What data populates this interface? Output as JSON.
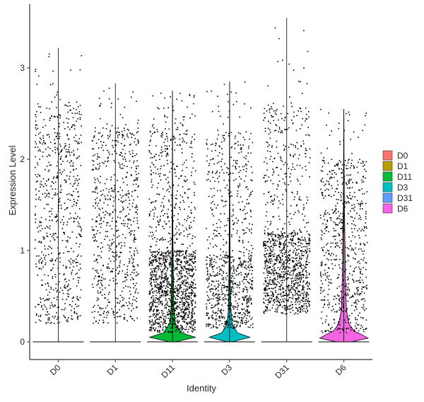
{
  "chart_data": {
    "type": "violin",
    "title": "",
    "xlabel": "Identity",
    "ylabel": "Expression Level",
    "ylim": [
      -0.18,
      3.6
    ],
    "yticks": [
      0,
      1,
      2,
      3
    ],
    "categories": [
      "D0",
      "D1",
      "D11",
      "D3",
      "D31",
      "D6"
    ],
    "legend": {
      "position": "right",
      "entries": [
        "D0",
        "D1",
        "D11",
        "D3",
        "D31",
        "D6"
      ]
    },
    "colors": [
      "#F8766D",
      "#B79F00",
      "#00BA38",
      "#00BFC4",
      "#619CFF",
      "#F564E3"
    ],
    "grid": false,
    "series": [
      {
        "name": "D0",
        "max": 3.22,
        "zero_density": 0.0,
        "body": []
      },
      {
        "name": "D1",
        "max": 2.83,
        "zero_density": 0.0,
        "body": []
      },
      {
        "name": "D11",
        "max": 2.75,
        "zero_density": 0.12,
        "body": [
          [
            0.05,
            0.9
          ],
          [
            0.1,
            0.35
          ],
          [
            0.2,
            0.12
          ],
          [
            0.35,
            0.06
          ],
          [
            0.55,
            0.04
          ],
          [
            0.8,
            0.03
          ],
          [
            1.1,
            0.02
          ],
          [
            1.5,
            0.01
          ],
          [
            2.75,
            0.0
          ]
        ]
      },
      {
        "name": "D3",
        "max": 2.85,
        "zero_density": 0.1,
        "body": [
          [
            0.05,
            0.8
          ],
          [
            0.1,
            0.3
          ],
          [
            0.2,
            0.1
          ],
          [
            0.35,
            0.05
          ],
          [
            0.6,
            0.03
          ],
          [
            1.0,
            0.02
          ],
          [
            1.5,
            0.01
          ],
          [
            2.85,
            0.0
          ]
        ]
      },
      {
        "name": "D31",
        "max": 3.55,
        "zero_density": 0.0,
        "body": []
      },
      {
        "name": "D6",
        "max": 2.55,
        "zero_density": 0.3,
        "body": [
          [
            0.04,
            0.95
          ],
          [
            0.08,
            0.7
          ],
          [
            0.12,
            0.4
          ],
          [
            0.2,
            0.2
          ],
          [
            0.35,
            0.1
          ],
          [
            0.6,
            0.07
          ],
          [
            0.9,
            0.05
          ],
          [
            1.2,
            0.04
          ],
          [
            1.5,
            0.02
          ],
          [
            2.0,
            0.01
          ],
          [
            2.55,
            0.0
          ]
        ]
      }
    ]
  }
}
